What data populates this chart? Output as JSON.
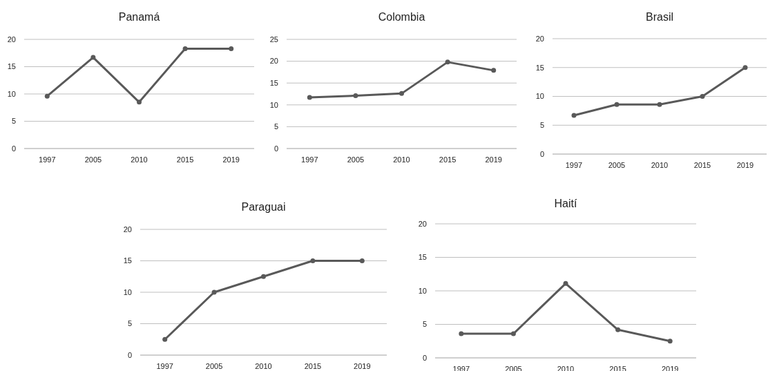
{
  "chart_data": [
    {
      "type": "line",
      "title": "Panamá",
      "categories": [
        "1997",
        "2005",
        "2010",
        "2015",
        "2019"
      ],
      "series": [
        {
          "color": "#595959",
          "values": [
            9.6,
            16.7,
            8.5,
            18.3,
            18.3
          ]
        }
      ],
      "ylim": [
        0,
        20
      ],
      "yticks": [
        0,
        5,
        10,
        15,
        20
      ],
      "grid": "y",
      "marker": "circle"
    },
    {
      "type": "line",
      "title": "Colombia",
      "categories": [
        "1997",
        "2005",
        "2010",
        "2015",
        "2019"
      ],
      "series": [
        {
          "color": "#595959",
          "values": [
            11.7,
            12.1,
            12.6,
            19.8,
            17.9
          ]
        }
      ],
      "ylim": [
        0,
        25
      ],
      "yticks": [
        0,
        5,
        10,
        15,
        20,
        25
      ],
      "grid": "y",
      "marker": "circle"
    },
    {
      "type": "line",
      "title": "Brasil",
      "categories": [
        "1997",
        "2005",
        "2010",
        "2015",
        "2019"
      ],
      "series": [
        {
          "color": "#595959",
          "values": [
            6.7,
            8.6,
            8.6,
            10,
            15
          ]
        }
      ],
      "ylim": [
        0,
        20
      ],
      "yticks": [
        0,
        5,
        10,
        15,
        20
      ],
      "grid": "y",
      "marker": "circle"
    },
    {
      "type": "line",
      "title": "Paraguai",
      "categories": [
        "1997",
        "2005",
        "2010",
        "2015",
        "2019"
      ],
      "series": [
        {
          "color": "#595959",
          "values": [
            2.5,
            10,
            12.5,
            15,
            15
          ]
        }
      ],
      "ylim": [
        0,
        20
      ],
      "yticks": [
        0,
        5,
        10,
        15,
        20
      ],
      "grid": "y",
      "marker": "circle"
    },
    {
      "type": "line",
      "title": "Haití",
      "categories": [
        "1997",
        "2005",
        "2010",
        "2015",
        "2019"
      ],
      "series": [
        {
          "color": "#595959",
          "values": [
            3.6,
            3.6,
            11.1,
            4.2,
            2.5
          ]
        }
      ],
      "ylim": [
        0,
        20
      ],
      "yticks": [
        0,
        5,
        10,
        15,
        20
      ],
      "grid": "y",
      "marker": "circle"
    }
  ]
}
